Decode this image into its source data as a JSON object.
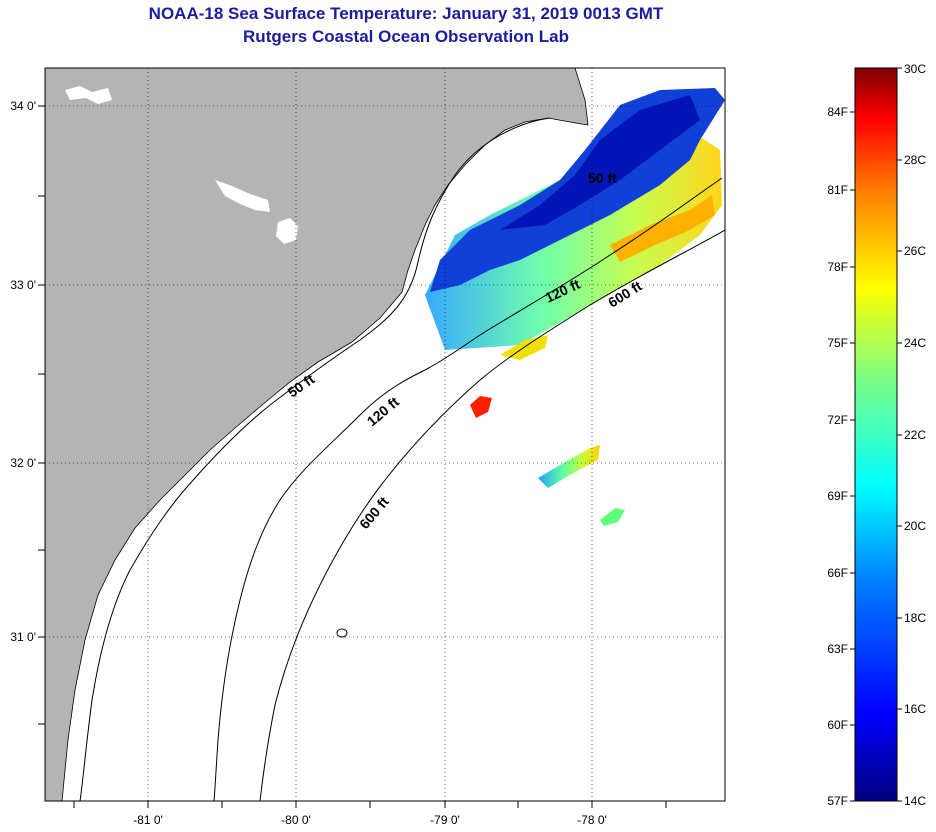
{
  "title": {
    "line1": "NOAA-18 Sea Surface Temperature:  January 31, 2019 0013 GMT",
    "line2": "Rutgers Coastal Ocean Observation Lab"
  },
  "map": {
    "lat_labels": [
      "34 0'",
      "33 0'",
      "32 0'",
      "31 0'"
    ],
    "lon_labels": [
      "-81 0'",
      "-80 0'",
      "-79 0'",
      "-78 0'"
    ],
    "contour_labels": {
      "c50_north": "50 ft",
      "c50_south": "50 ft",
      "c120_north": "120 ft",
      "c120_south": "120 ft",
      "c600_north": "600 ft",
      "c600_south": "600 ft"
    },
    "colors": {
      "land": "#b4b4b4",
      "ocean": "#ffffff",
      "gridlines": "#000000"
    }
  },
  "colorbar": {
    "celsius": [
      "30C",
      "28C",
      "26C",
      "24C",
      "22C",
      "20C",
      "18C",
      "16C",
      "14C"
    ],
    "fahrenheit": [
      "84F",
      "81F",
      "78F",
      "75F",
      "72F",
      "69F",
      "66F",
      "63F",
      "60F",
      "57F"
    ],
    "min_c": 14,
    "max_c": 30
  }
}
